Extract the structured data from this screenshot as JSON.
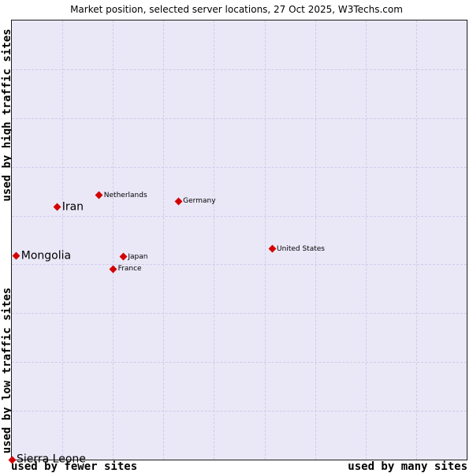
{
  "title": "Market position, selected server locations, 27 Oct 2025, W3Techs.com",
  "axes": {
    "left_top": "used by high traffic sites",
    "left_bottom": "used by low traffic sites",
    "bottom_left": "used by fewer sites",
    "bottom_right": "used by many sites"
  },
  "chart_data": {
    "type": "scatter",
    "title": "Market position, selected server locations, 27 Oct 2025, W3Techs.com",
    "x_axis": {
      "label_low": "used by fewer sites",
      "label_high": "used by many sites",
      "scale": "qualitative"
    },
    "y_axis": {
      "label_high": "used by high traffic sites",
      "label_low": "used by low traffic sites",
      "scale": "qualitative"
    },
    "legend": "none",
    "grid": {
      "columns": 9,
      "rows": 9,
      "style": "dashed",
      "color": "#cfcae9"
    },
    "plot_bg": "#eae8f7",
    "marker": {
      "shape": "diamond",
      "color": "#d40000"
    },
    "points": [
      {
        "label": "Iran",
        "x_pct": 10.0,
        "y_pct": 42.5,
        "emphasis": "large"
      },
      {
        "label": "Netherlands",
        "x_pct": 19.2,
        "y_pct": 39.8,
        "emphasis": "small"
      },
      {
        "label": "Germany",
        "x_pct": 36.6,
        "y_pct": 41.2,
        "emphasis": "small"
      },
      {
        "label": "Mongolia",
        "x_pct": 1.0,
        "y_pct": 53.6,
        "emphasis": "large"
      },
      {
        "label": "Japan",
        "x_pct": 24.5,
        "y_pct": 53.8,
        "emphasis": "small"
      },
      {
        "label": "France",
        "x_pct": 22.3,
        "y_pct": 56.6,
        "emphasis": "small"
      },
      {
        "label": "United States",
        "x_pct": 57.2,
        "y_pct": 52.0,
        "emphasis": "small"
      },
      {
        "label": "Sierra Leone",
        "x_pct": 0.0,
        "y_pct": 100.0,
        "emphasis": "large"
      }
    ]
  }
}
